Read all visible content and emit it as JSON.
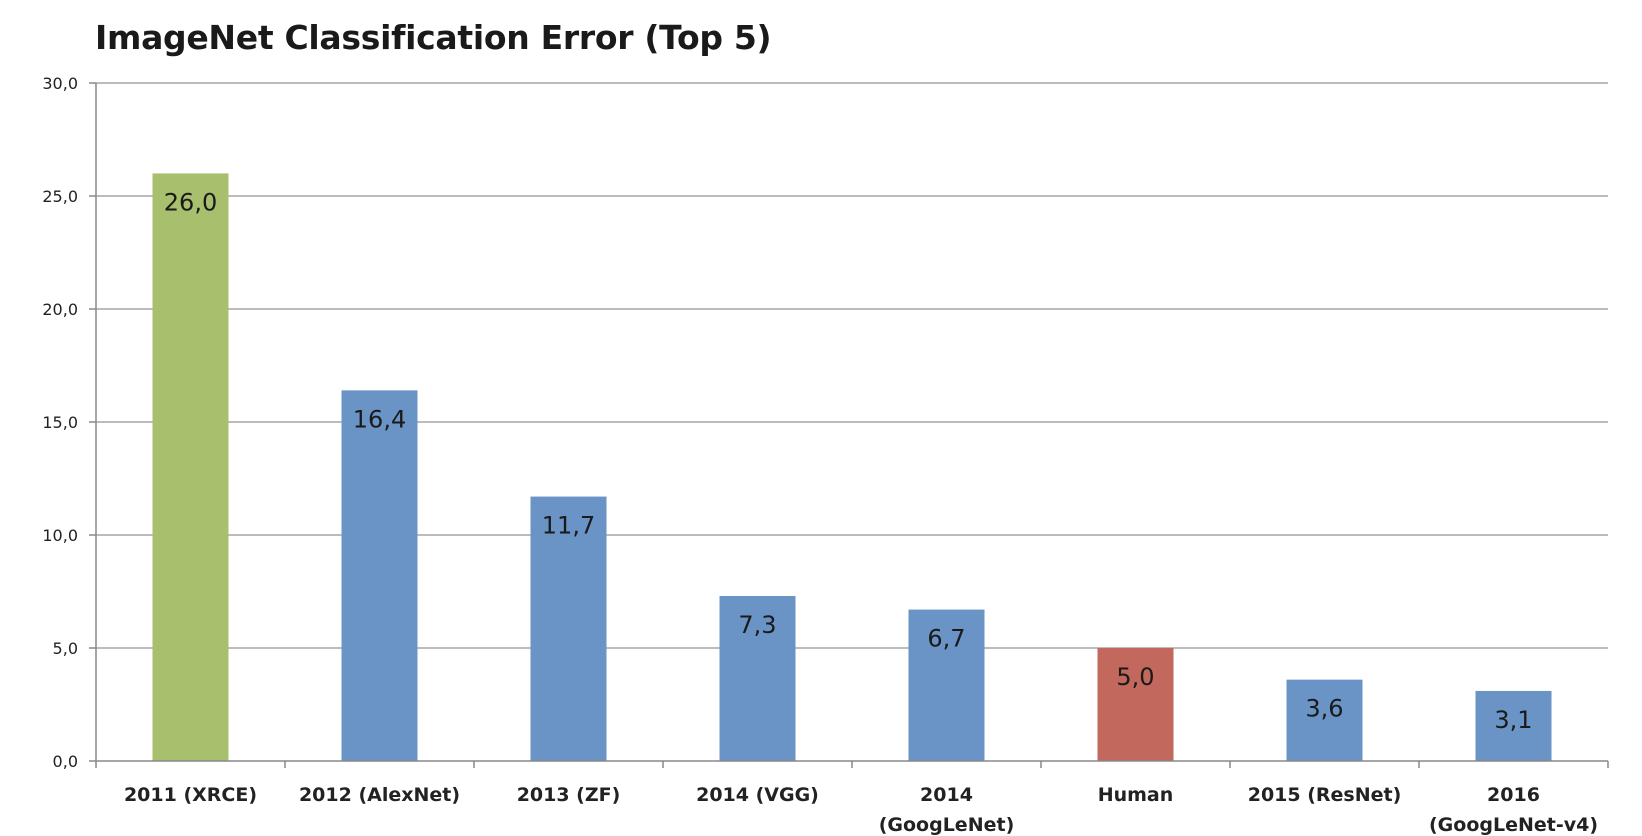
{
  "chart_data": {
    "type": "bar",
    "title": "ImageNet Classification Error (Top 5)",
    "xlabel": "",
    "ylabel": "",
    "ylim": [
      0,
      30
    ],
    "yticks": [
      "0,0",
      "5,0",
      "10,0",
      "15,0",
      "20,0",
      "25,0",
      "30,0"
    ],
    "grid": true,
    "legend": "none",
    "categories": [
      [
        "2011 (XRCE)"
      ],
      [
        "2012 (AlexNet)"
      ],
      [
        "2013 (ZF)"
      ],
      [
        "2014 (VGG)"
      ],
      [
        "2014",
        "(GoogLeNet)"
      ],
      [
        "Human"
      ],
      [
        "2015 (ResNet)"
      ],
      [
        "2016",
        "(GoogLeNet-v4)"
      ]
    ],
    "values": [
      26.0,
      16.4,
      11.7,
      7.3,
      6.7,
      5.0,
      3.6,
      3.1
    ],
    "value_labels": [
      "26,0",
      "16,4",
      "11,7",
      "7,3",
      "6,7",
      "5,0",
      "3,6",
      "3,1"
    ],
    "bar_colors": [
      "#a8bf6d",
      "#6a93c6",
      "#6a93c6",
      "#6a93c6",
      "#6a93c6",
      "#c2685d",
      "#6a93c6",
      "#6a93c6"
    ],
    "colors": {
      "gridline": "#a6a6a6",
      "axis": "#888888"
    }
  }
}
